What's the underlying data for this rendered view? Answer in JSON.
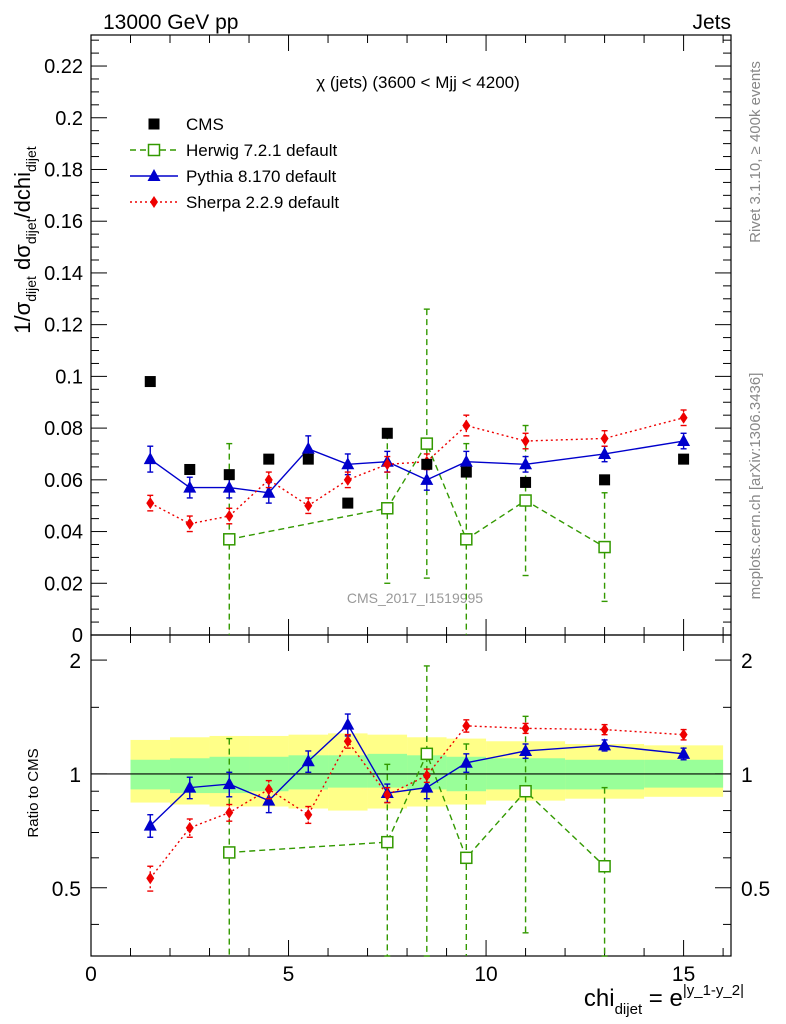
{
  "header": {
    "left": "13000 GeV pp",
    "right": "Jets"
  },
  "side_labels": {
    "rivet": "Rivet 3.1.10, ≥ 400k events",
    "mcplots": "mcplots.cern.ch [arXiv:1306.3436]"
  },
  "watermark": "CMS_2017_I1519995",
  "chart_data": {
    "type": "scatter",
    "title": "χ (jets) (3600 < Mjj < 4200)",
    "ylabel_main": "1/σ_dijet dσ_dijet/dchi_dijet",
    "ylabel_ratio": "Ratio to CMS",
    "xlabel": "chi_dijet = e^|y_1-y_2|",
    "xlim": [
      0,
      16.2
    ],
    "ylim_main": [
      0,
      0.232
    ],
    "ylim_ratio": [
      0.33,
      2.33
    ],
    "ratio_log_scale": true,
    "xticks": [
      0,
      5,
      10,
      15
    ],
    "yticks_main": [
      0,
      0.02,
      0.04,
      0.06,
      0.08,
      0.1,
      0.12,
      0.14,
      0.16,
      0.18,
      0.2,
      0.22
    ],
    "yticks_ratio": [
      0.5,
      1,
      2
    ],
    "legend_position": "top-left",
    "colors": {
      "cms": "#000000",
      "herwig": "#339900",
      "pythia": "#0000cc",
      "sherpa": "#ee0000",
      "band_inner": "#99ff99",
      "band_outer": "#ffff88"
    },
    "data_band": {
      "edges": [
        1,
        2,
        3,
        4,
        5,
        6,
        7,
        8,
        9,
        10,
        12,
        14,
        16
      ],
      "stat_low": [
        0.91,
        0.89,
        0.89,
        0.9,
        0.91,
        0.92,
        0.92,
        0.91,
        0.9,
        0.91,
        0.91,
        0.92
      ],
      "stat_high": [
        1.09,
        1.1,
        1.11,
        1.11,
        1.12,
        1.12,
        1.13,
        1.12,
        1.11,
        1.1,
        1.09,
        1.09
      ],
      "tot_low": [
        0.84,
        0.83,
        0.82,
        0.82,
        0.81,
        0.8,
        0.81,
        0.82,
        0.83,
        0.85,
        0.86,
        0.87
      ],
      "tot_high": [
        1.23,
        1.25,
        1.26,
        1.26,
        1.27,
        1.28,
        1.27,
        1.25,
        1.24,
        1.22,
        1.2,
        1.19
      ]
    },
    "series": [
      {
        "name": "CMS",
        "marker": "square-filled",
        "x": [
          1.5,
          2.5,
          3.5,
          4.5,
          5.5,
          6.5,
          7.5,
          8.5,
          9.5,
          11,
          13,
          15
        ],
        "y": [
          0.098,
          0.064,
          0.062,
          0.068,
          0.068,
          0.051,
          0.078,
          0.066,
          0.063,
          0.059,
          0.06,
          0.068
        ],
        "ratio": [
          1,
          1,
          1,
          1,
          1,
          1,
          1,
          1,
          1,
          1,
          1,
          1
        ]
      },
      {
        "name": "Herwig 7.2.1 default",
        "marker": "square-open",
        "line": "dashed",
        "x": [
          3.5,
          7.5,
          8.5,
          9.5,
          11,
          13
        ],
        "y": [
          0.037,
          0.049,
          0.074,
          0.037,
          0.052,
          0.034
        ],
        "yerr": [
          0.037,
          0.029,
          0.052,
          0.037,
          0.029,
          0.021
        ],
        "ratio": [
          0.62,
          0.66,
          1.13,
          0.6,
          0.9,
          0.57
        ],
        "ratio_err": [
          0.62,
          0.4,
          0.8,
          0.6,
          0.52,
          0.35
        ]
      },
      {
        "name": "Pythia 8.170 default",
        "marker": "triangle-filled",
        "line": "solid",
        "x": [
          1.5,
          2.5,
          3.5,
          4.5,
          5.5,
          6.5,
          7.5,
          8.5,
          9.5,
          11,
          13,
          15
        ],
        "y": [
          0.068,
          0.057,
          0.057,
          0.055,
          0.072,
          0.066,
          0.067,
          0.06,
          0.067,
          0.066,
          0.07,
          0.075
        ],
        "yerr": [
          0.005,
          0.004,
          0.004,
          0.004,
          0.005,
          0.004,
          0.004,
          0.004,
          0.004,
          0.003,
          0.003,
          0.003
        ],
        "ratio": [
          0.73,
          0.92,
          0.94,
          0.85,
          1.08,
          1.35,
          0.89,
          0.92,
          1.07,
          1.15,
          1.19,
          1.13
        ],
        "ratio_err": [
          0.05,
          0.06,
          0.07,
          0.06,
          0.07,
          0.09,
          0.05,
          0.06,
          0.06,
          0.05,
          0.04,
          0.04
        ]
      },
      {
        "name": "Sherpa 2.2.9 default",
        "marker": "diamond-filled",
        "line": "dotted",
        "x": [
          1.5,
          2.5,
          3.5,
          4.5,
          5.5,
          6.5,
          7.5,
          8.5,
          9.5,
          11,
          13,
          15
        ],
        "y": [
          0.051,
          0.043,
          0.046,
          0.06,
          0.05,
          0.06,
          0.066,
          0.067,
          0.081,
          0.075,
          0.076,
          0.084
        ],
        "yerr": [
          0.003,
          0.003,
          0.003,
          0.003,
          0.003,
          0.003,
          0.003,
          0.003,
          0.004,
          0.003,
          0.003,
          0.003
        ],
        "ratio": [
          0.53,
          0.72,
          0.79,
          0.91,
          0.78,
          1.22,
          0.88,
          0.99,
          1.34,
          1.32,
          1.31,
          1.27
        ],
        "ratio_err": [
          0.04,
          0.04,
          0.04,
          0.05,
          0.04,
          0.05,
          0.04,
          0.04,
          0.05,
          0.04,
          0.04,
          0.04
        ]
      }
    ]
  }
}
